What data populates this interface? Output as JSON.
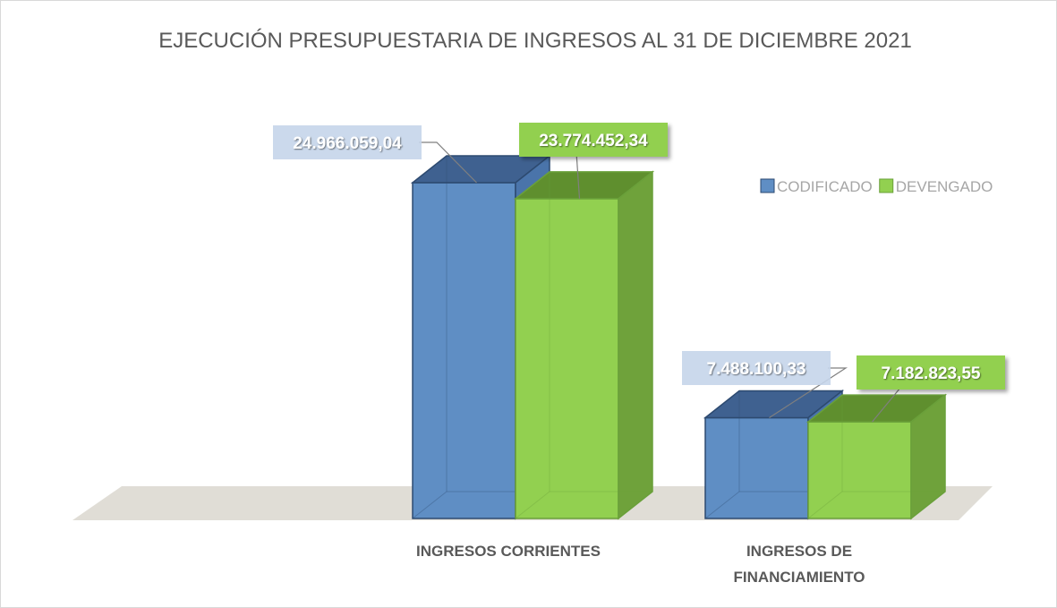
{
  "chart_data": {
    "type": "bar3d",
    "title": "EJECUCIÓN PRESUPUESTARIA DE INGRESOS AL 31 DE DICIEMBRE 2021",
    "categories": [
      "INGRESOS CORRIENTES",
      "INGRESOS DE FINANCIAMIENTO"
    ],
    "series": [
      {
        "name": "CODIFICADO",
        "color": "#5f8ec4",
        "values": [
          24966059.04,
          7488100.33
        ],
        "value_labels": [
          "24.966.059,04",
          "7.488.100,33"
        ]
      },
      {
        "name": "DEVENGADO",
        "color": "#92d050",
        "values": [
          23774452.34,
          7182823.55
        ],
        "value_labels": [
          "23.774.452,34",
          "7.182.823,55"
        ]
      }
    ],
    "legend": "right"
  }
}
